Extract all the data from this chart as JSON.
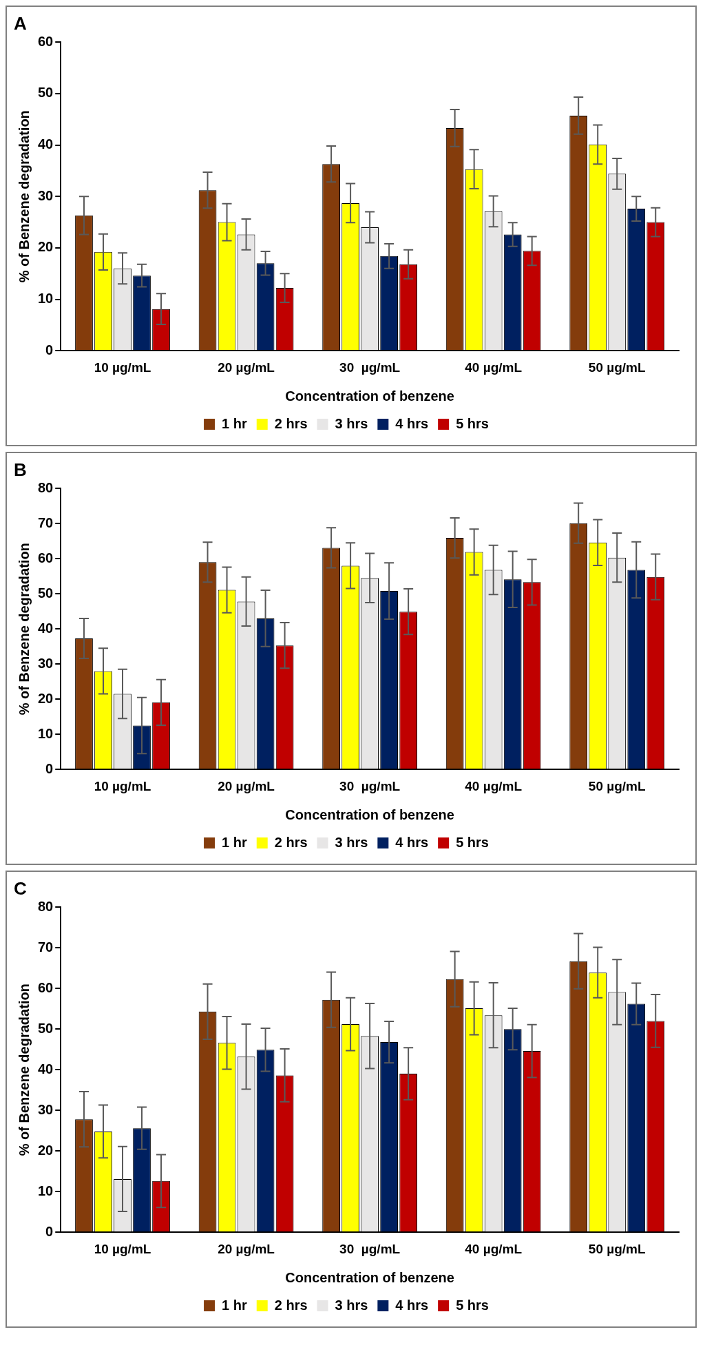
{
  "chart_data": [
    {
      "type": "bar",
      "title": "A",
      "xlabel": "Concentration of benzene",
      "ylabel": "% of Benzene degradation",
      "categories": [
        "10 µg/mL",
        "20 µg/mL",
        "30  µg/mL",
        "40 µg/mL",
        "50 µg/mL"
      ],
      "ylim": [
        0,
        60
      ],
      "yticks": [
        0,
        10,
        20,
        30,
        40,
        50,
        60
      ],
      "grid": false,
      "legend": "bottom",
      "series": [
        {
          "name": "1 hr",
          "color": "#843c0c",
          "values": [
            26.3,
            31.2,
            36.3,
            43.3,
            45.7
          ],
          "errors": [
            3.7,
            3.5,
            3.5,
            3.6,
            3.6
          ]
        },
        {
          "name": "2 hrs",
          "color": "#ffff00",
          "values": [
            19.2,
            25,
            28.7,
            35.3,
            40.1
          ],
          "errors": [
            3.5,
            3.6,
            3.8,
            3.8,
            3.8
          ]
        },
        {
          "name": "3 hrs",
          "color": "#e7e6e6",
          "values": [
            16,
            22.6,
            24,
            27.1,
            34.4
          ],
          "errors": [
            3,
            3,
            3,
            3,
            3
          ]
        },
        {
          "name": "4 hrs",
          "color": "#002060",
          "values": [
            14.6,
            17,
            18.4,
            22.6,
            27.6
          ],
          "errors": [
            2.2,
            2.3,
            2.4,
            2.3,
            2.4
          ]
        },
        {
          "name": "5 hrs",
          "color": "#c00000",
          "values": [
            8.1,
            12.2,
            16.8,
            19.4,
            25
          ],
          "errors": [
            3,
            2.8,
            2.8,
            2.8,
            2.8
          ]
        }
      ]
    },
    {
      "type": "bar",
      "title": "B",
      "xlabel": "Concentration of benzene",
      "ylabel": "% of Benzene degradation",
      "categories": [
        "10 µg/mL",
        "20 µg/mL",
        "30  µg/mL",
        "40 µg/mL",
        "50 µg/mL"
      ],
      "ylim": [
        0,
        80
      ],
      "yticks": [
        0,
        10,
        20,
        30,
        40,
        50,
        60,
        70,
        80
      ],
      "grid": false,
      "legend": "bottom",
      "series": [
        {
          "name": "1 hr",
          "color": "#843c0c",
          "values": [
            37.3,
            59,
            63.1,
            65.9,
            70.1
          ],
          "errors": [
            5.7,
            5.7,
            5.7,
            5.7,
            5.7
          ]
        },
        {
          "name": "2 hrs",
          "color": "#ffff00",
          "values": [
            28,
            51.1,
            58,
            61.9,
            64.6
          ],
          "errors": [
            6.5,
            6.5,
            6.5,
            6.5,
            6.5
          ]
        },
        {
          "name": "3 hrs",
          "color": "#e7e6e6",
          "values": [
            21.5,
            47.8,
            54.5,
            56.8,
            60.3
          ],
          "errors": [
            7,
            7,
            7,
            7,
            7
          ]
        },
        {
          "name": "4 hrs",
          "color": "#002060",
          "values": [
            12.5,
            43,
            50.8,
            54.1,
            56.8
          ],
          "errors": [
            8,
            8,
            8,
            8,
            8
          ]
        },
        {
          "name": "5 hrs",
          "color": "#c00000",
          "values": [
            19.1,
            35.3,
            44.9,
            53.3,
            54.8
          ],
          "errors": [
            6.5,
            6.5,
            6.5,
            6.5,
            6.5
          ]
        }
      ]
    },
    {
      "type": "bar",
      "title": "C",
      "xlabel": "Concentration of benzene",
      "ylabel": "% of Benzene degradation",
      "categories": [
        "10 µg/mL",
        "20 µg/mL",
        "30  µg/mL",
        "40 µg/mL",
        "50 µg/mL"
      ],
      "ylim": [
        0,
        80
      ],
      "yticks": [
        0,
        10,
        20,
        30,
        40,
        50,
        60,
        70,
        80
      ],
      "grid": false,
      "legend": "bottom",
      "series": [
        {
          "name": "1 hr",
          "color": "#843c0c",
          "values": [
            27.8,
            54.3,
            57.2,
            62.3,
            66.7
          ],
          "errors": [
            6.8,
            6.8,
            6.8,
            6.8,
            6.8
          ]
        },
        {
          "name": "2 hrs",
          "color": "#ffff00",
          "values": [
            24.8,
            46.6,
            51.2,
            55.1,
            63.9
          ],
          "errors": [
            6.5,
            6.5,
            6.5,
            6.5,
            6.2
          ]
        },
        {
          "name": "3 hrs",
          "color": "#e7e6e6",
          "values": [
            13.1,
            43.2,
            48.3,
            53.4,
            59.1
          ],
          "errors": [
            8,
            8,
            8,
            8,
            8
          ]
        },
        {
          "name": "4 hrs",
          "color": "#002060",
          "values": [
            25.6,
            44.9,
            46.8,
            50,
            56.2
          ],
          "errors": [
            5.2,
            5.3,
            5.1,
            5.1,
            5.1
          ]
        },
        {
          "name": "5 hrs",
          "color": "#c00000",
          "values": [
            12.6,
            38.6,
            39,
            44.6,
            52
          ],
          "errors": [
            6.5,
            6.5,
            6.4,
            6.5,
            6.5
          ]
        }
      ]
    }
  ]
}
